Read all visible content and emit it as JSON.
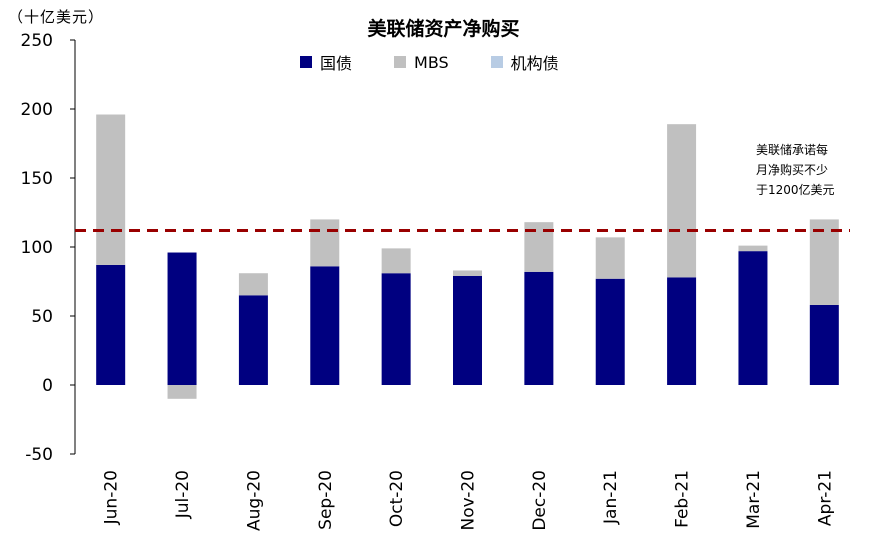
{
  "unit_label": "（十亿美元）",
  "title": "美联储资产净购买",
  "legend": [
    {
      "label": "国债",
      "color": "#000080"
    },
    {
      "label": "MBS",
      "color": "#c0c0c0"
    },
    {
      "label": "机构债",
      "color": "#b8cce4"
    }
  ],
  "annotation": [
    "美联储承诺每",
    "月净购买不少",
    "于1200亿美元"
  ],
  "chart_data": {
    "type": "bar",
    "stacked": true,
    "categories": [
      "Jun-20",
      "Jul-20",
      "Aug-20",
      "Sep-20",
      "Oct-20",
      "Nov-20",
      "Dec-20",
      "Jan-21",
      "Feb-21",
      "Mar-21",
      "Apr-21"
    ],
    "series": [
      {
        "name": "国债",
        "color": "#000080",
        "values": [
          87,
          96,
          65,
          86,
          81,
          79,
          82,
          77,
          78,
          97,
          58
        ]
      },
      {
        "name": "MBS",
        "color": "#c0c0c0",
        "values": [
          109,
          -10,
          16,
          34,
          18,
          4,
          36,
          30,
          111,
          4,
          62
        ]
      },
      {
        "name": "机构债",
        "color": "#b8cce4",
        "values": [
          0,
          0,
          0,
          0,
          0,
          0,
          0,
          0,
          0,
          0,
          0
        ]
      }
    ],
    "reference_line": {
      "value": 112,
      "color": "#990000",
      "style": "dashed"
    },
    "ylim": [
      -50,
      250
    ],
    "yticks": [
      -50,
      0,
      50,
      100,
      150,
      200,
      250
    ],
    "xlabel": "",
    "ylabel": "",
    "grid": false,
    "legend_position": "top"
  }
}
